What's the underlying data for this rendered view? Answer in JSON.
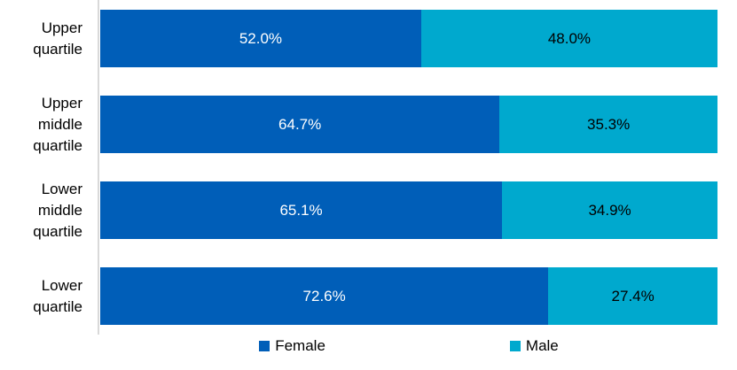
{
  "chart_data": {
    "type": "bar",
    "orientation": "horizontal",
    "stacked": true,
    "unit": "percent",
    "title": "",
    "xlabel": "",
    "ylabel": "",
    "xlim": [
      0,
      100
    ],
    "grid": false,
    "legend_position": "bottom",
    "axis_line_color": "#D9D9D9",
    "background_color": "#FFFFFF",
    "categories": [
      "Upper\nquartile",
      "Upper\nmiddle\nquartile",
      "Lower\nmiddle\nquartile",
      "Lower\nquartile"
    ],
    "series": [
      {
        "name": "Female",
        "color": "#005EB8",
        "label_color": "#FFFFFF",
        "values": [
          52.0,
          64.7,
          65.1,
          72.6
        ],
        "labels": [
          "52.0%",
          "64.7%",
          "65.1%",
          "72.6%"
        ]
      },
      {
        "name": "Male",
        "color": "#00A9CE",
        "label_color": "#000000",
        "values": [
          48.0,
          35.3,
          34.9,
          27.4
        ],
        "labels": [
          "48.0%",
          "35.3%",
          "34.9%",
          "27.4%"
        ]
      }
    ]
  },
  "legend": {
    "female_label": "Female",
    "male_label": "Male"
  }
}
